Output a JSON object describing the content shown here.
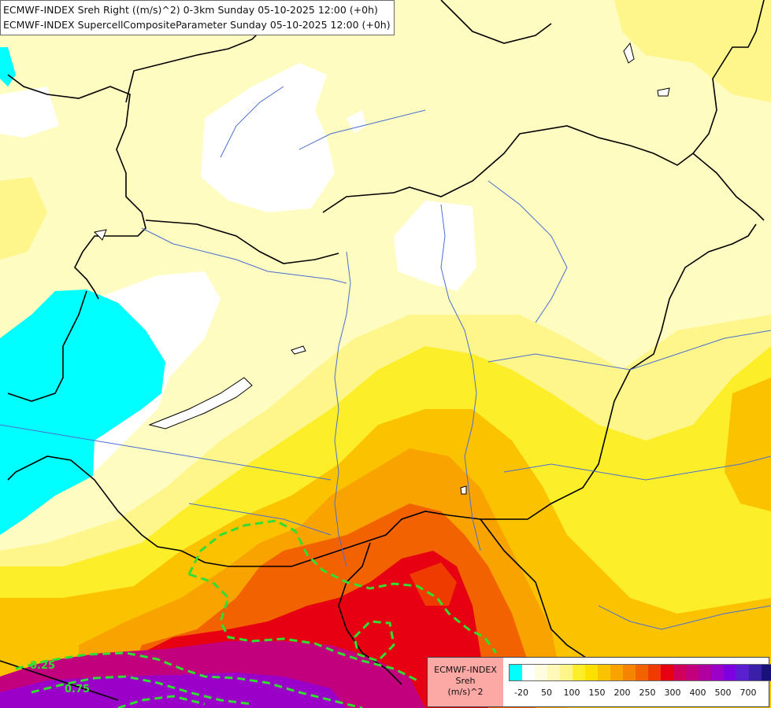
{
  "titles": [
    "ECMWF-INDEX Sreh Right ((m/s)^2) 0-3km Sunday 05-10-2025 12:00 (+0h)",
    "ECMWF-INDEX SupercellCompositeParameter Sunday 05-10-2025 12:00 (+0h)"
  ],
  "legend": {
    "name_lines": [
      "ECMWF-INDEX",
      "Sreh",
      "(m/s)^2"
    ],
    "colors": [
      "#00ffff",
      "#ffffff",
      "#fffde0",
      "#fef9b8",
      "#fef68a",
      "#fdee2a",
      "#fde000",
      "#fbc200",
      "#f8a300",
      "#f58400",
      "#f26200",
      "#ef3a00",
      "#e60012",
      "#d0005a",
      "#c2007e",
      "#b0009e",
      "#9a00c8",
      "#7e00e0",
      "#5a20d0",
      "#3a20a8",
      "#16127a"
    ],
    "ticks": [
      "-20",
      "50",
      "100",
      "150",
      "200",
      "250",
      "300",
      "400",
      "500",
      "700"
    ]
  },
  "contour_labels": [
    "0.25",
    "0.75"
  ],
  "colors": {
    "pale_yellow": "#fefcc0",
    "cyan": "#00ffff",
    "contour_green": "#33dd33",
    "border": "#000000",
    "river": "#4a6fd0"
  }
}
